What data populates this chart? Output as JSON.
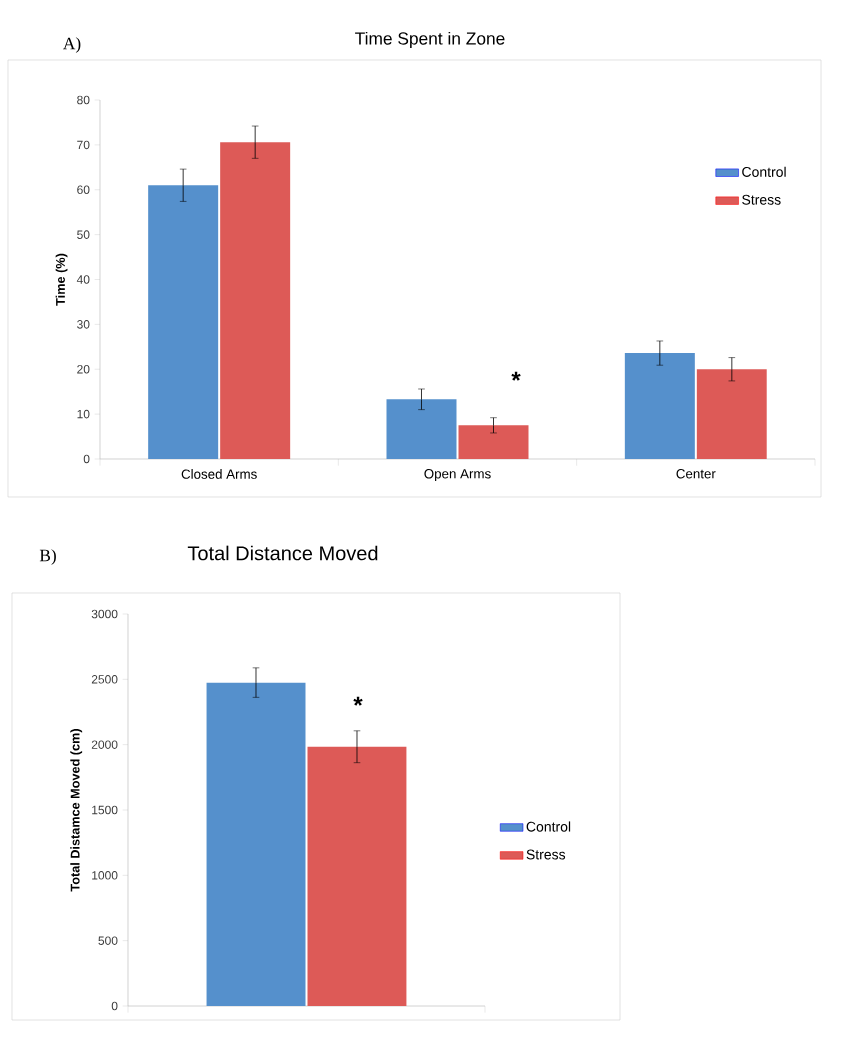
{
  "chart_data": [
    {
      "type": "bar",
      "title": "Time Spent in Zone",
      "ylabel": "Time (%)",
      "categories": [
        "Closed Arms",
        "Open Arms",
        "Center"
      ],
      "series": [
        {
          "name": "Control",
          "color": "#5590cc",
          "values": [
            61.0,
            13.3,
            23.6
          ],
          "errors": [
            3.6,
            2.3,
            2.7
          ]
        },
        {
          "name": "Stress",
          "color": "#dd5a57",
          "values": [
            70.6,
            7.5,
            20.0
          ],
          "errors": [
            3.6,
            1.7,
            2.6
          ]
        }
      ],
      "ylim": [
        0,
        80
      ],
      "yticks": [
        0,
        10,
        20,
        30,
        40,
        50,
        60,
        70,
        80
      ],
      "legend": "top right",
      "annotations": [
        "A)",
        "*"
      ]
    },
    {
      "type": "bar",
      "title": "Total Distance Moved",
      "ylabel": "Total Distamce Moved (cm)",
      "categories": [
        null
      ],
      "series": [
        {
          "name": "Control",
          "color": "#5590cc",
          "values": [
            2475
          ],
          "errors": [
            113
          ]
        },
        {
          "name": "Stress",
          "color": "#dd5a57",
          "values": [
            1984
          ],
          "errors": [
            122
          ]
        }
      ],
      "ylim": [
        0,
        3000
      ],
      "yticks": [
        0,
        500,
        1000,
        1500,
        2000,
        2500,
        3000
      ],
      "legend": "right",
      "annotations": [
        "B)",
        "*"
      ]
    }
  ]
}
